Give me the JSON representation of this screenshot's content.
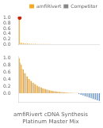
{
  "chart_data": [
    {
      "type": "bar",
      "categories": [
        null,
        null,
        null,
        null,
        null,
        null,
        null,
        null,
        null,
        null,
        null,
        null,
        null,
        null,
        null,
        null,
        null,
        null,
        null,
        null,
        null,
        null,
        null,
        null,
        null,
        null,
        null,
        null,
        null,
        null,
        null,
        null,
        null,
        null,
        null,
        null,
        null,
        null,
        null,
        null
      ],
      "series": [
        {
          "name": "amfiRivert",
          "color": "#f5a623",
          "values": [
            1.0,
            0.06,
            0.045,
            0.035,
            0.028,
            0.022,
            0.018,
            0.015,
            0.012,
            0.01,
            0.009,
            0.008,
            0.007,
            0.006,
            0.005,
            0.004,
            0.003,
            0.003,
            0.002,
            0.002,
            0.002,
            0.001,
            0.001,
            0.001,
            0.001,
            0.001,
            0.001,
            0.001,
            0.001,
            0.001,
            0.001,
            0.001,
            0.001,
            0.001,
            0.001,
            0.001,
            0.001,
            0.001,
            0.001,
            0.001
          ]
        },
        {
          "name": "Competitor",
          "color": "#888888",
          "values": [
            0.0,
            0.0,
            0.0,
            0.0,
            0.0,
            0.0,
            0.0,
            0.0,
            0.0,
            0.0,
            0.0,
            0.0,
            0.0,
            0.0,
            0.0,
            0.003,
            0.003,
            0.003,
            0.003,
            0.003,
            0.003,
            0.003,
            0.003,
            0.003,
            0.003,
            0.003,
            0.003,
            0.003,
            0.003,
            0.003,
            0.003,
            0.003,
            0.003,
            0.003,
            0.003,
            0.003,
            0.003,
            0.003,
            0.003,
            0.003
          ]
        },
        {
          "type": "scatter",
          "color": "#cc2200",
          "values": [
            1.0,
            null,
            null,
            null,
            null,
            null,
            null,
            null,
            null,
            null,
            null,
            null,
            null,
            null,
            null,
            null,
            null,
            null,
            null,
            null,
            null,
            null,
            null,
            null,
            null,
            null,
            null,
            null,
            null,
            null,
            null,
            null,
            null,
            null,
            null,
            null,
            null,
            null,
            null,
            null
          ]
        }
      ],
      "ylim": [
        0,
        1.05
      ],
      "yticks": [
        {
          "value": 0,
          "label": "0.0"
        },
        0.2,
        0.4,
        0.6,
        0.8,
        {
          "value": 1,
          "label": "1.0"
        }
      ],
      "grid": false,
      "legend": "upper right",
      "tick_labels": "y"
    },
    {
      "type": "bar",
      "categories": [
        null,
        null,
        null,
        null,
        null,
        null,
        null,
        null,
        null,
        null,
        null,
        null,
        null,
        null,
        null,
        null,
        null,
        null,
        null,
        null,
        null,
        null,
        null,
        null,
        null,
        null,
        null,
        null,
        null,
        null,
        null,
        null,
        null,
        null,
        null,
        null,
        null,
        null,
        null,
        null
      ],
      "series": [
        {
          "color": "#f5a623",
          "values": [
            1.0,
            0.82,
            0.68,
            0.57,
            0.48,
            0.41,
            0.35,
            0.3,
            0.26,
            0.22,
            0.19,
            0.165,
            0.14,
            0.12,
            0.105,
            0.09,
            0.078,
            0.067,
            0.057,
            0.048,
            0.041,
            0.035,
            0.029,
            0.024,
            0.02,
            0.016,
            0.013,
            0.01,
            0.008,
            0.006,
            0.005,
            0.004,
            0.003,
            0.002,
            0.002,
            0.001,
            0.001,
            0.001,
            0.001,
            0.001
          ]
        },
        {
          "color": "#c8c8c8",
          "values": [
            0.88,
            0.7,
            0.58,
            0.49,
            0.41,
            0.35,
            0.3,
            0.26,
            0.22,
            0.19,
            0.165,
            0.14,
            0.12,
            0.103,
            0.088,
            0.075,
            0.064,
            0.054,
            0.046,
            0.039,
            0.033,
            0.028,
            0.023,
            0.019,
            0.016,
            0.013,
            0.01,
            0.008,
            0.006,
            0.005,
            0.004,
            0.003,
            0.002,
            0.002,
            0.001,
            0.001,
            0.001,
            0.001,
            0.001,
            0.001
          ]
        },
        {
          "color": "#4a7fc1",
          "values": [
            null,
            null,
            null,
            null,
            null,
            null,
            null,
            null,
            null,
            null,
            null,
            null,
            null,
            null,
            null,
            null,
            null,
            null,
            null,
            null,
            null,
            null,
            null,
            null,
            null,
            null,
            null,
            null,
            null,
            -0.02,
            -0.04,
            -0.06,
            -0.08,
            -0.1,
            -0.12,
            -0.14,
            -0.16,
            -0.18,
            -0.2,
            -0.22
          ]
        }
      ],
      "ylim": [
        -0.25,
        1.05
      ],
      "yticks": [
        {
          "value": 0,
          "label": "0.0"
        },
        0.2,
        0.4,
        0.6,
        0.8,
        {
          "value": 1,
          "label": "1.0"
        }
      ],
      "grid": false,
      "tick_labels": "y",
      "annotations": [
        "amfiRivert cDNA Synthesis\nPlatinum Master Mix"
      ]
    }
  ]
}
